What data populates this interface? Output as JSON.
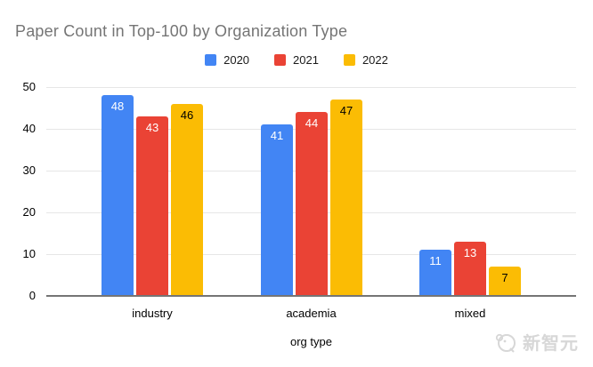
{
  "title": "Paper Count in Top-100 by Organization Type",
  "watermark": {
    "text": "新智元",
    "icon": "xinzhiyuan-logo",
    "color": "#d7d7d7"
  },
  "colors": {
    "background": "#ffffff",
    "title_text": "#757575",
    "axis_text": "#000000",
    "legend_text": "#1a1a1a",
    "gridline": "#e6e6e6",
    "baseline": "#757575",
    "series_blue": "#4285f4",
    "series_red": "#ea4335",
    "series_yellow": "#fbbc04"
  },
  "chart_data": {
    "type": "bar",
    "title": "Paper Count in Top-100 by Organization Type",
    "categories": [
      "industry",
      "academia",
      "mixed"
    ],
    "series": [
      {
        "name": "2020",
        "color": "#4285f4",
        "label_color": "#ffffff",
        "values": [
          48,
          41,
          11
        ]
      },
      {
        "name": "2021",
        "color": "#ea4335",
        "label_color": "#ffffff",
        "values": [
          43,
          44,
          13
        ]
      },
      {
        "name": "2022",
        "color": "#fbbc04",
        "label_color": "#000000",
        "values": [
          46,
          47,
          7
        ]
      }
    ],
    "xlabel": "org type",
    "ylabel": "",
    "ylim": [
      0,
      50
    ],
    "yticks": [
      0,
      10,
      20,
      30,
      40,
      50
    ],
    "grid": true,
    "legend_position": "top",
    "value_labels": "inside-top"
  }
}
